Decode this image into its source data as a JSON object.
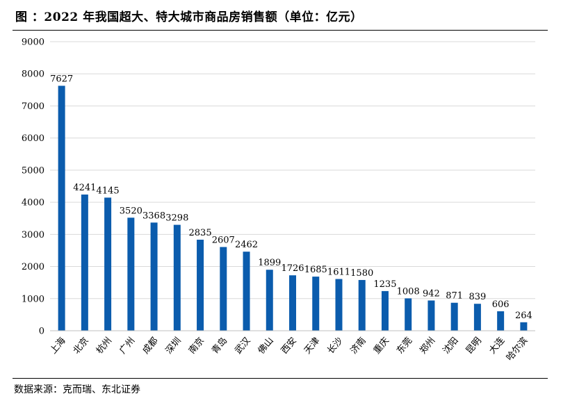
{
  "title": "图  ：2022 年我国超大、特大城市商品房销售额（单位：亿元）",
  "source": "数据来源：克而瑞、东北证券",
  "chart_data": {
    "type": "bar",
    "categories": [
      "上海",
      "北京",
      "杭州",
      "广州",
      "成都",
      "深圳",
      "南京",
      "青岛",
      "武汉",
      "佛山",
      "西安",
      "天津",
      "长沙",
      "济南",
      "重庆",
      "东莞",
      "郑州",
      "沈阳",
      "昆明",
      "大连",
      "哈尔滨"
    ],
    "values": [
      7627,
      4241,
      4145,
      3520,
      3368,
      3298,
      2835,
      2607,
      2462,
      1899,
      1726,
      1685,
      1611,
      1580,
      1235,
      1008,
      942,
      871,
      839,
      606,
      264
    ],
    "ylim": [
      0,
      9000
    ],
    "yticks": [
      0,
      1000,
      2000,
      3000,
      4000,
      5000,
      6000,
      7000,
      8000,
      9000
    ],
    "xlabel": "",
    "ylabel": "",
    "bar_color": "#0b5cad",
    "grid": true,
    "grid_color": "#d9d9d9",
    "legend": "none"
  }
}
